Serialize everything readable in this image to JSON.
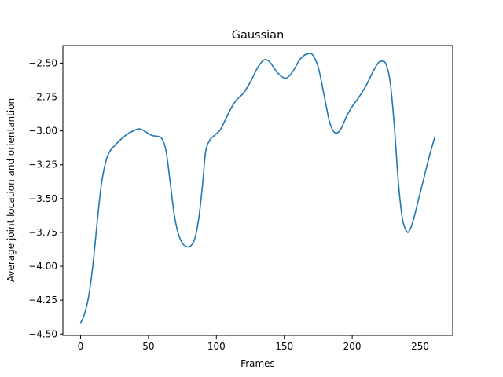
{
  "chart_data": {
    "type": "line",
    "title": "Gaussian",
    "xlabel": "Frames",
    "ylabel": "Average joint location and orientantion",
    "xlim": [
      -13,
      274
    ],
    "ylim": [
      -4.51,
      -2.37
    ],
    "xticks": [
      0,
      50,
      100,
      150,
      200,
      250
    ],
    "yticks": [
      -4.5,
      -4.25,
      -4.0,
      -3.75,
      -3.5,
      -3.25,
      -3.0,
      -2.75,
      -2.5
    ],
    "xtick_labels": [
      "0",
      "50",
      "100",
      "150",
      "200",
      "250"
    ],
    "ytick_labels": [
      "−4.50",
      "−4.25",
      "−4.00",
      "−3.75",
      "−3.50",
      "−3.25",
      "−3.00",
      "−2.75",
      "−2.50"
    ],
    "grid": false,
    "series": [
      {
        "color": "#1f77b4",
        "points": [
          [
            0,
            -4.42
          ],
          [
            3,
            -4.35
          ],
          [
            6,
            -4.22
          ],
          [
            9,
            -4.0
          ],
          [
            12,
            -3.7
          ],
          [
            15,
            -3.42
          ],
          [
            18,
            -3.25
          ],
          [
            21,
            -3.16
          ],
          [
            25,
            -3.11
          ],
          [
            30,
            -3.06
          ],
          [
            35,
            -3.02
          ],
          [
            40,
            -2.995
          ],
          [
            43,
            -2.985
          ],
          [
            46,
            -2.995
          ],
          [
            50,
            -3.02
          ],
          [
            53,
            -3.035
          ],
          [
            57,
            -3.04
          ],
          [
            60,
            -3.06
          ],
          [
            63,
            -3.15
          ],
          [
            66,
            -3.38
          ],
          [
            69,
            -3.62
          ],
          [
            72,
            -3.76
          ],
          [
            75,
            -3.83
          ],
          [
            78,
            -3.855
          ],
          [
            81,
            -3.85
          ],
          [
            84,
            -3.8
          ],
          [
            87,
            -3.65
          ],
          [
            90,
            -3.38
          ],
          [
            92,
            -3.16
          ],
          [
            95,
            -3.07
          ],
          [
            99,
            -3.03
          ],
          [
            103,
            -2.99
          ],
          [
            107,
            -2.91
          ],
          [
            111,
            -2.83
          ],
          [
            115,
            -2.77
          ],
          [
            120,
            -2.72
          ],
          [
            125,
            -2.64
          ],
          [
            130,
            -2.54
          ],
          [
            134,
            -2.485
          ],
          [
            137,
            -2.475
          ],
          [
            140,
            -2.5
          ],
          [
            145,
            -2.57
          ],
          [
            150,
            -2.61
          ],
          [
            153,
            -2.6
          ],
          [
            157,
            -2.55
          ],
          [
            161,
            -2.48
          ],
          [
            165,
            -2.44
          ],
          [
            168,
            -2.43
          ],
          [
            171,
            -2.44
          ],
          [
            175,
            -2.53
          ],
          [
            179,
            -2.72
          ],
          [
            183,
            -2.92
          ],
          [
            186,
            -3.0
          ],
          [
            189,
            -3.015
          ],
          [
            192,
            -2.98
          ],
          [
            196,
            -2.89
          ],
          [
            200,
            -2.82
          ],
          [
            205,
            -2.75
          ],
          [
            210,
            -2.67
          ],
          [
            215,
            -2.57
          ],
          [
            219,
            -2.5
          ],
          [
            222,
            -2.485
          ],
          [
            225,
            -2.51
          ],
          [
            228,
            -2.64
          ],
          [
            231,
            -2.96
          ],
          [
            234,
            -3.38
          ],
          [
            237,
            -3.65
          ],
          [
            240,
            -3.74
          ],
          [
            242,
            -3.74
          ],
          [
            245,
            -3.66
          ],
          [
            249,
            -3.5
          ],
          [
            253,
            -3.34
          ],
          [
            257,
            -3.18
          ],
          [
            261,
            -3.04
          ]
        ]
      }
    ]
  }
}
